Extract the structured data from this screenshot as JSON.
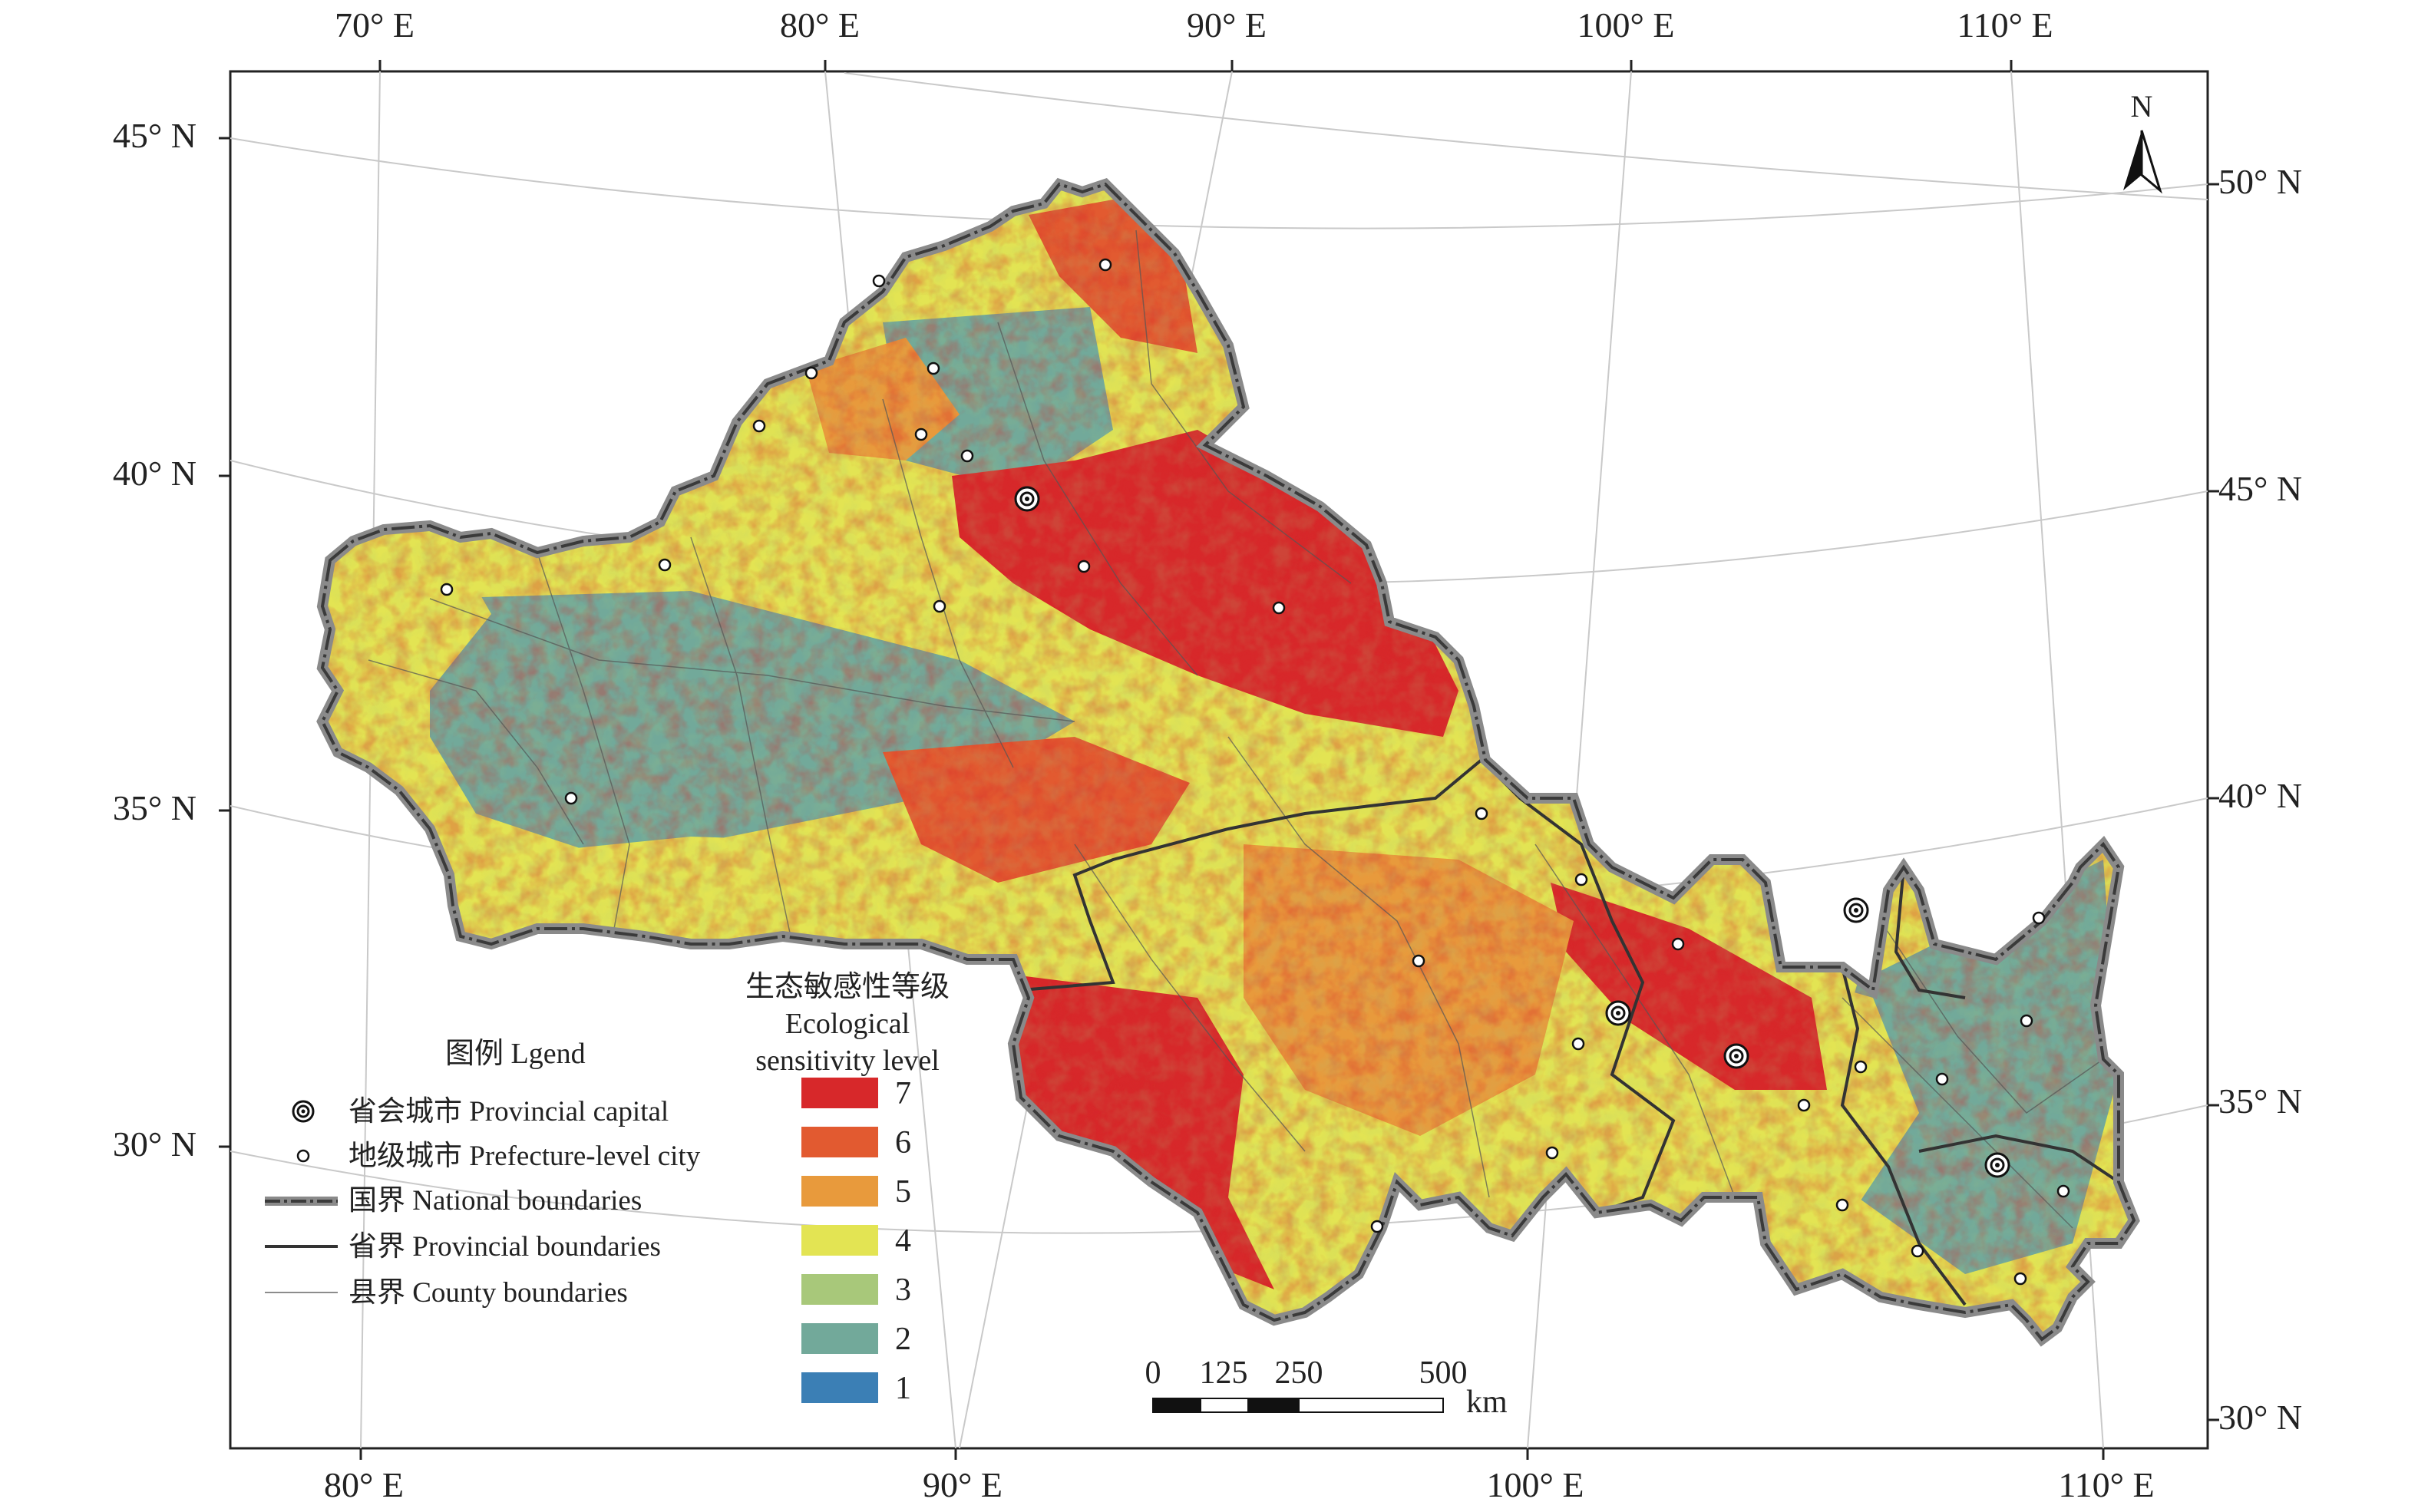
{
  "map": {
    "top_lon_labels": [
      "70° E",
      "80° E",
      "90° E",
      "100° E",
      "110° E"
    ],
    "bottom_lon_labels": [
      "80° E",
      "90° E",
      "100° E",
      "110° E"
    ],
    "left_lat_labels": [
      "45° N",
      "40° N",
      "35° N",
      "30° N"
    ],
    "right_lat_labels": [
      "50° N",
      "45° N",
      "40° N",
      "35° N",
      "30° N"
    ],
    "north_label": "N"
  },
  "legend": {
    "title": "图例 Lgend",
    "items": [
      {
        "label": "省会城市 Provincial capital",
        "icon": "provincial-capital-icon"
      },
      {
        "label": "地级城市 Prefecture-level city",
        "icon": "prefecture-city-icon"
      },
      {
        "label": "国界 National boundaries",
        "icon": "national-boundary-line"
      },
      {
        "label": "省界 Provincial boundaries",
        "icon": "provincial-boundary-line"
      },
      {
        "label": "县界 County boundaries",
        "icon": "county-boundary-line"
      }
    ]
  },
  "sensitivity": {
    "title_cn": "生态敏感性等级",
    "title_en_1": "Ecological",
    "title_en_2": "sensitivity level",
    "levels": [
      {
        "label": "7",
        "color": "#d7282a"
      },
      {
        "label": "6",
        "color": "#e25a30"
      },
      {
        "label": "5",
        "color": "#e89a3c"
      },
      {
        "label": "4",
        "color": "#e3e453"
      },
      {
        "label": "3",
        "color": "#a8c87a"
      },
      {
        "label": "2",
        "color": "#72a99a"
      },
      {
        "label": "1",
        "color": "#3b7fb5"
      }
    ]
  },
  "scale_bar": {
    "ticks": [
      "0",
      "125",
      "250",
      "500"
    ],
    "unit": "km"
  }
}
